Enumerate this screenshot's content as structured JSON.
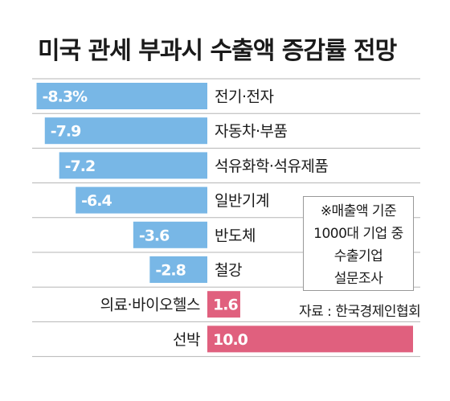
{
  "title": "미국 관세 부과시 수출액 증감률 전망",
  "note_lines": [
    "※매출액 기준",
    "1000대 기업 중",
    "수출기업",
    "설문조사"
  ],
  "source": "자료 : 한국경제인협회",
  "colors": {
    "negative": "#78b7e6",
    "positive": "#e0607e",
    "grid": "#b5b5b5",
    "text": "#1a1a1a",
    "value_on_bar": "#ffffff"
  },
  "chart_data": {
    "type": "bar",
    "orientation": "horizontal",
    "categories": [
      "전기·전자",
      "자동차·부품",
      "석유화학·석유제품",
      "일반기계",
      "반도체",
      "철강",
      "의료·바이오헬스",
      "선박"
    ],
    "values": [
      -8.3,
      -7.9,
      -7.2,
      -6.4,
      -3.6,
      -2.8,
      1.6,
      10.0
    ],
    "value_labels": [
      "-8.3%",
      "-7.9",
      "-7.2",
      "-6.4",
      "-3.6",
      "-2.8",
      "1.6",
      "10.0"
    ],
    "title": "미국 관세 부과시 수출액 증감률 전망",
    "xlabel": "",
    "ylabel": "",
    "grid": true
  }
}
